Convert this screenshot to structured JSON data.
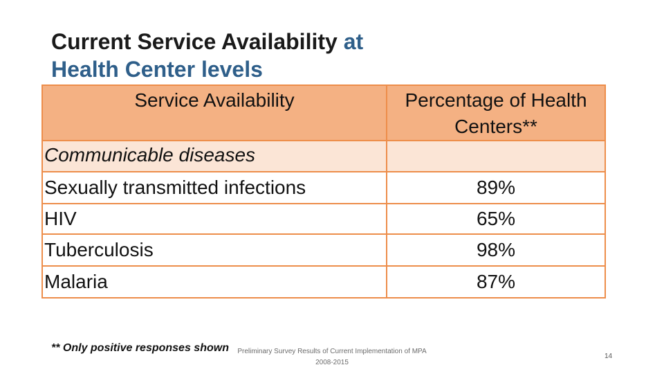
{
  "title": {
    "part1": "Current Service Availability ",
    "part2": "at Health Center levels",
    "accent_color": "#2f5f8a"
  },
  "table": {
    "header_col1": "Service Availability",
    "header_col2": "Percentage of Health Centers**",
    "section_label": "Communicable diseases",
    "rows": [
      {
        "service": "Sexually transmitted infections",
        "percent": "89%"
      },
      {
        "service": "HIV",
        "percent": "65%"
      },
      {
        "service": "Tuberculosis",
        "percent": "98%"
      },
      {
        "service": "Malaria",
        "percent": "87%"
      }
    ],
    "colors": {
      "header_fill": "#f4b183",
      "section_fill": "#fbe5d6",
      "border": "#ed8d4a"
    }
  },
  "footnote": "** Only positive responses shown",
  "source": {
    "line1": "Preliminary Survey Results of Current Implementation of MPA",
    "line2": "2008-2015"
  },
  "page_number": "14"
}
